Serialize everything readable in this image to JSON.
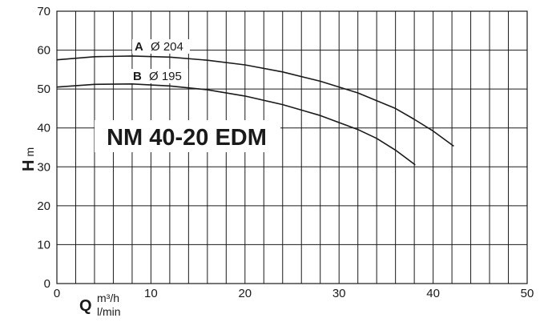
{
  "chart_data": {
    "type": "line",
    "title": "NM 40-20 EDM",
    "ylabel": "H",
    "yunit": "m",
    "xlabel": "Q",
    "xunit_top": "m³/h",
    "xunit_bottom": "l/min",
    "xlim": [
      0,
      50
    ],
    "ylim": [
      0,
      70
    ],
    "xticks": [
      "0",
      "10",
      "20",
      "30",
      "40",
      "50"
    ],
    "yticks": [
      "0",
      "10",
      "20",
      "30",
      "40",
      "50",
      "60",
      "70"
    ],
    "grid": true,
    "minor_x_step": 2,
    "series": [
      {
        "name": "A",
        "diameter_label": "Ø 204",
        "x": [
          0,
          4,
          8,
          12,
          16,
          20,
          24,
          28,
          32,
          36,
          38,
          40,
          42.2
        ],
        "y": [
          57.5,
          58.3,
          58.5,
          58.2,
          57.4,
          56.2,
          54.4,
          52.0,
          49.0,
          45.0,
          42.2,
          39.2,
          35.3
        ]
      },
      {
        "name": "B",
        "diameter_label": "Ø 195",
        "x": [
          0,
          4,
          8,
          12,
          16,
          20,
          24,
          28,
          32,
          34,
          36,
          38.1
        ],
        "y": [
          50.5,
          51.2,
          51.3,
          50.8,
          49.8,
          48.2,
          46.0,
          43.2,
          39.6,
          37.3,
          34.3,
          30.5
        ]
      }
    ]
  }
}
